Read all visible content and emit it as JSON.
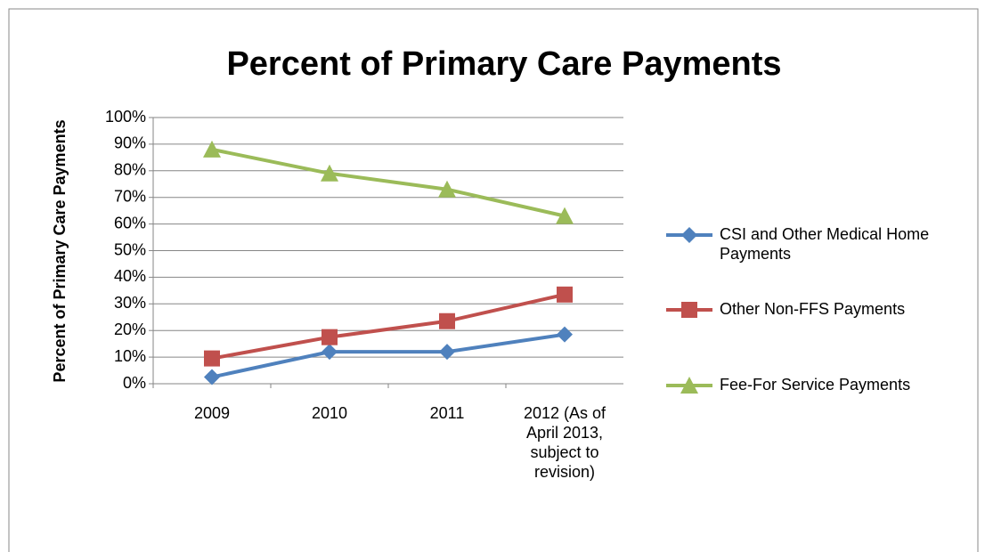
{
  "chart_data": {
    "type": "line",
    "title": "Percent of Primary Care Payments",
    "y_label": "Percent of Primary Care Payments",
    "categories": [
      "2009",
      "2010",
      "2011",
      "2012 (As of April 2013, subject to revision)"
    ],
    "series": [
      {
        "name": "CSI and Other Medical Home Payments",
        "color": "#4f81bd",
        "marker": "diamond",
        "values": [
          2.5,
          12,
          12,
          18.5
        ]
      },
      {
        "name": "Other Non-FFS Payments",
        "color": "#c0504d",
        "marker": "square",
        "values": [
          9.5,
          17.5,
          23.5,
          33.5
        ]
      },
      {
        "name": "Fee-For Service Payments",
        "color": "#9bbb59",
        "marker": "triangle",
        "values": [
          88,
          79,
          73,
          63
        ]
      }
    ],
    "ylim": [
      0,
      100
    ],
    "yticks": [
      {
        "value": 0,
        "label": "0%"
      },
      {
        "value": 10,
        "label": "10%"
      },
      {
        "value": 20,
        "label": "20%"
      },
      {
        "value": 30,
        "label": "30%"
      },
      {
        "value": 40,
        "label": "40%"
      },
      {
        "value": 50,
        "label": "50%"
      },
      {
        "value": 60,
        "label": "60%"
      },
      {
        "value": 70,
        "label": "70%"
      },
      {
        "value": 80,
        "label": "80%"
      },
      {
        "value": 90,
        "label": "90%"
      },
      {
        "value": 100,
        "label": "100%"
      }
    ],
    "grid": true,
    "legend": "right"
  }
}
